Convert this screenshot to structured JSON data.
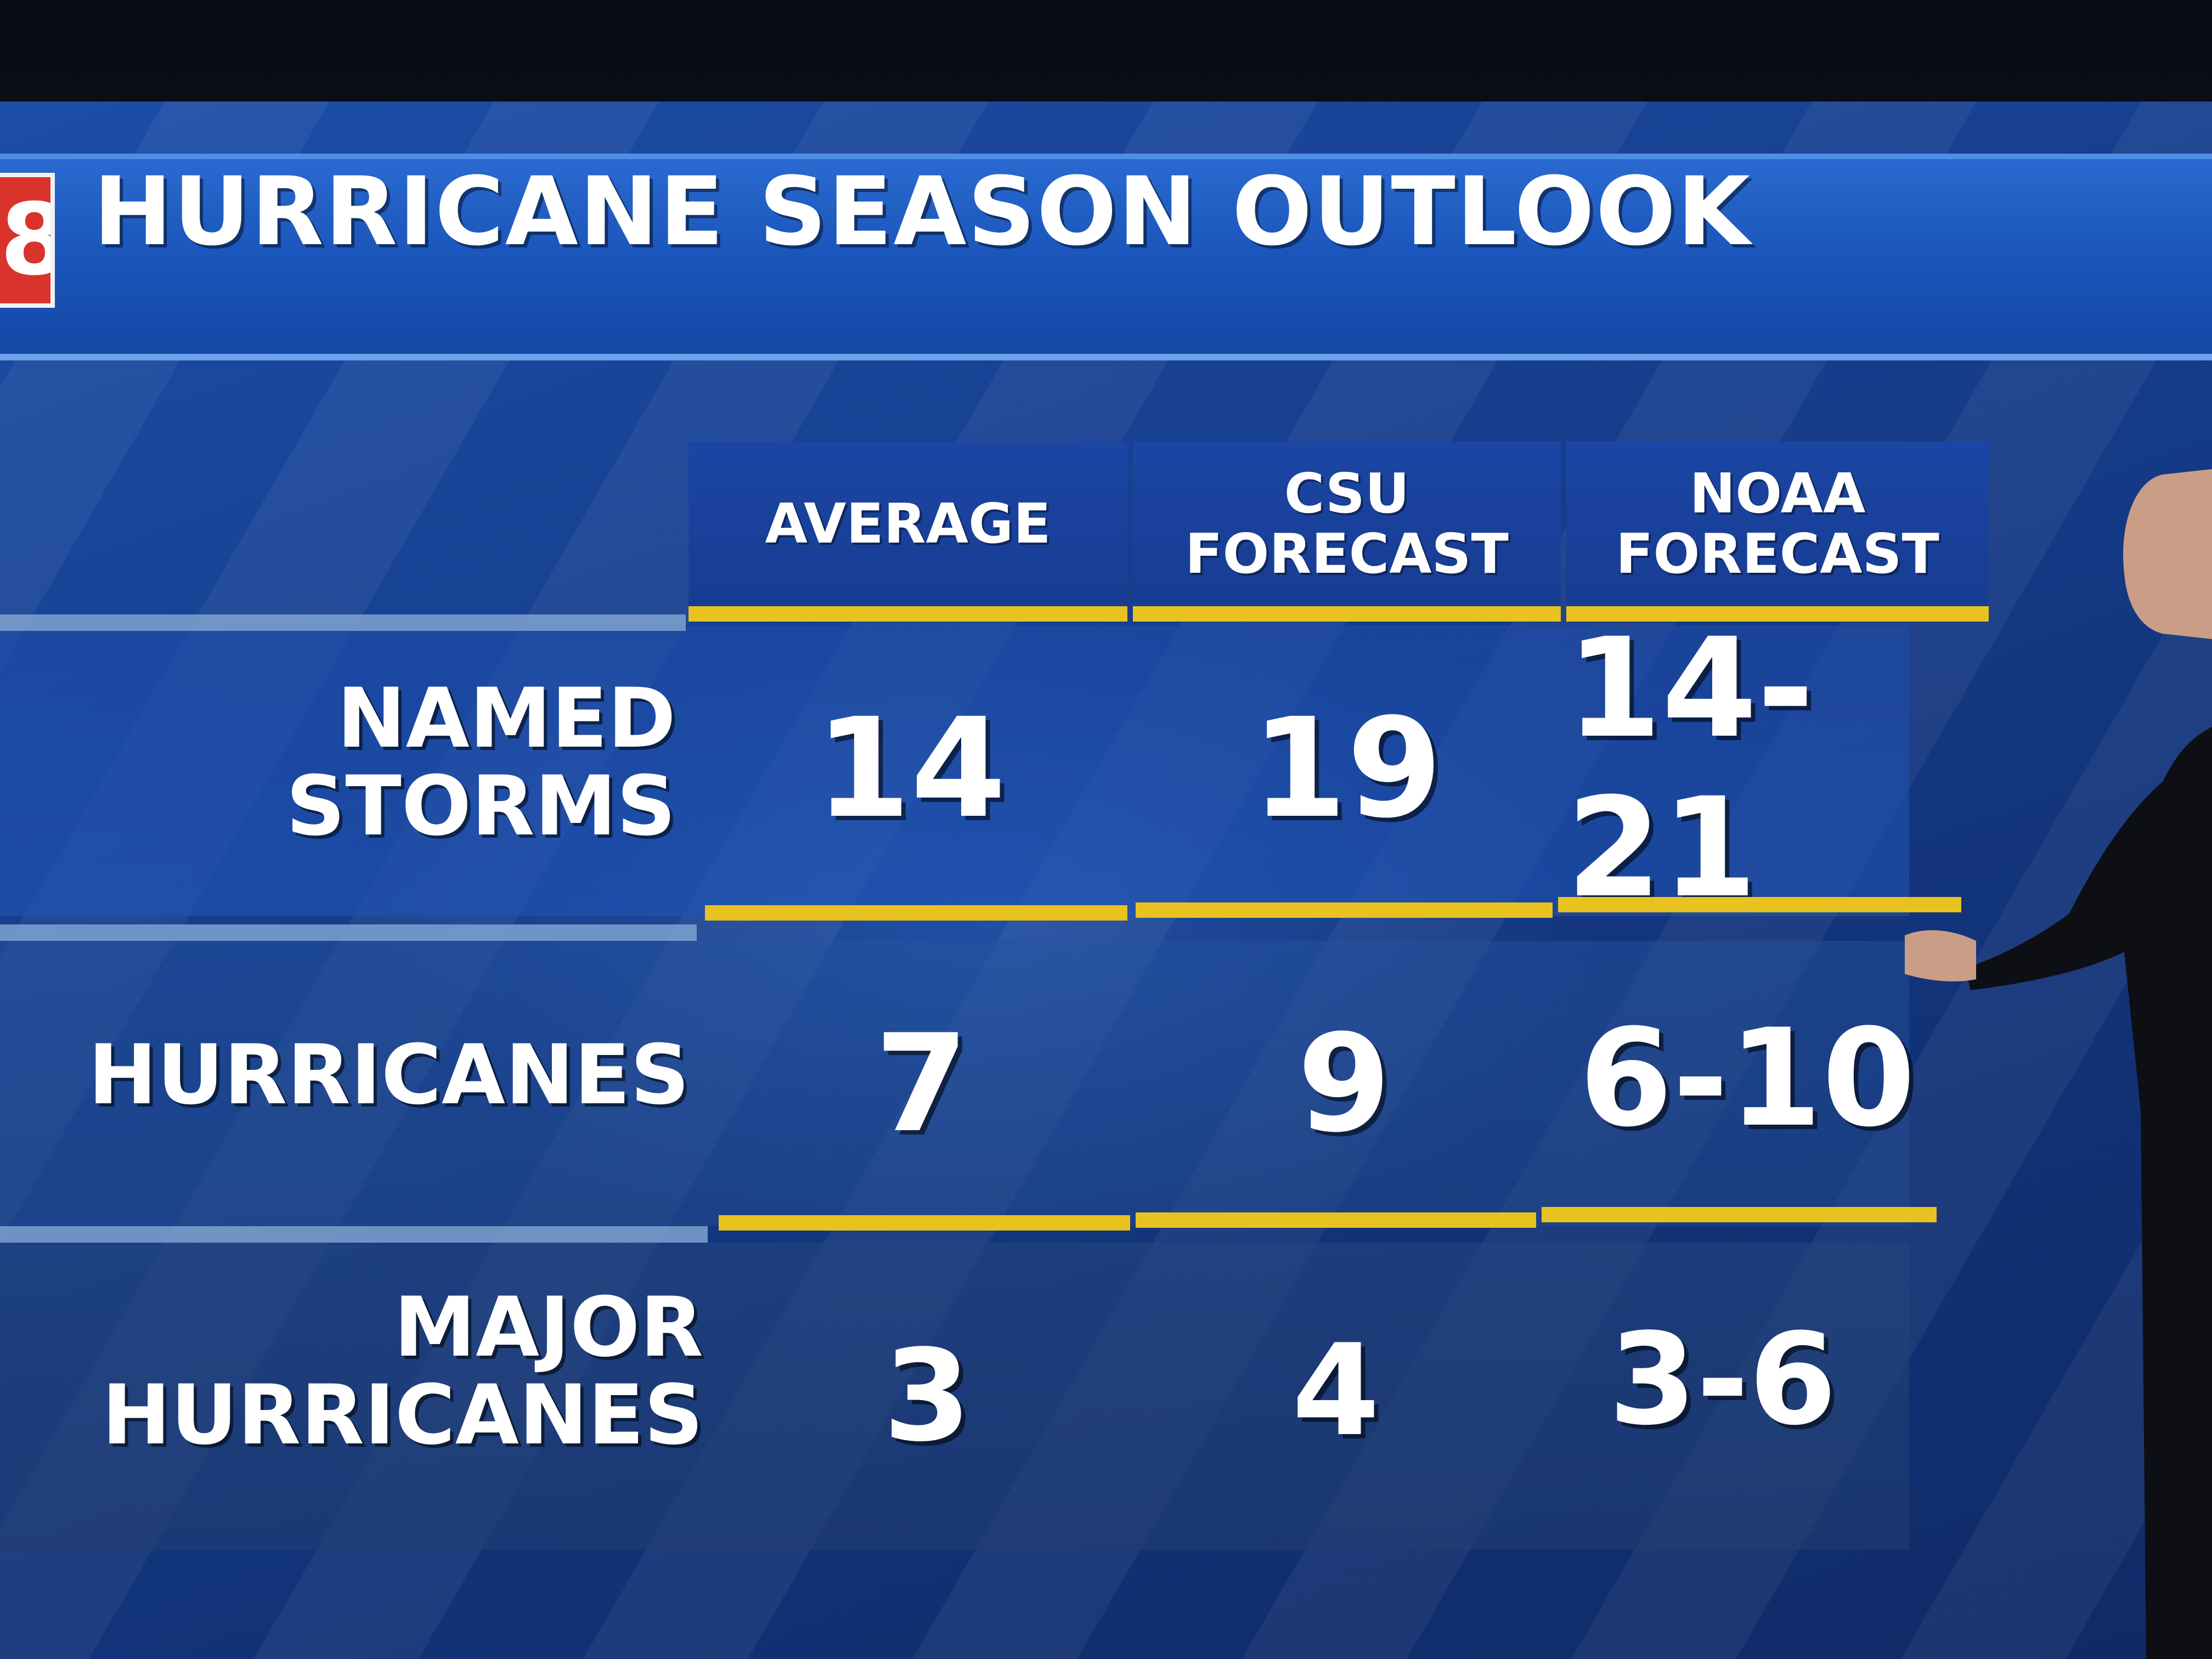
{
  "title": "HURRICANE SEASON OUTLOOK",
  "columns": [
    "AVERAGE",
    "CSU\nFORECAST",
    "NOAA\nFORECAST"
  ],
  "rows": [
    {
      "label": "NAMED\nSTORMS",
      "values": [
        "14",
        "19",
        "14-21"
      ]
    },
    {
      "label": "HURRICANES",
      "values": [
        "7",
        "9",
        "6-10"
      ]
    },
    {
      "label": "MAJOR\nHURRICANES",
      "values": [
        "3",
        "4",
        "3-6"
      ]
    }
  ],
  "colors": {
    "background": "#173f8f",
    "header_accent": "#e8c21f",
    "text": "#ffffff",
    "logo": "#d8342b"
  }
}
